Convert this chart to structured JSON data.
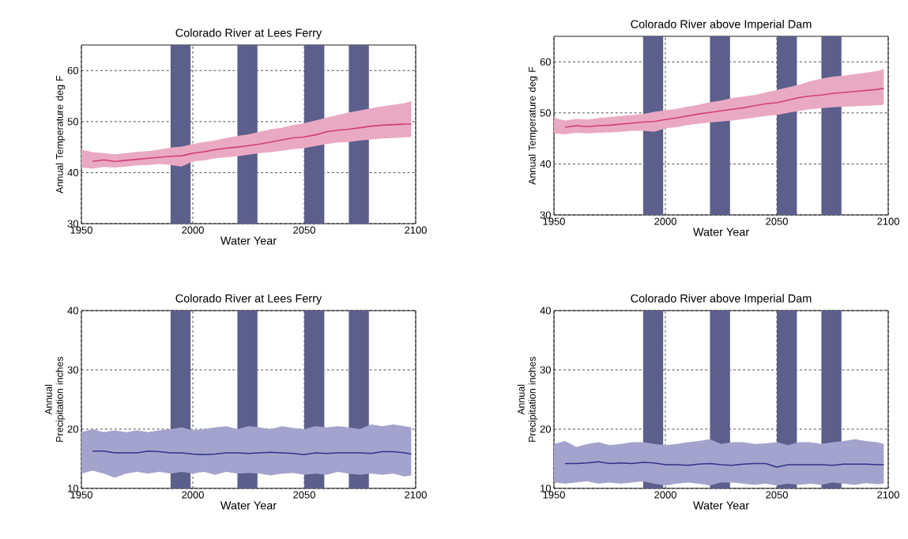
{
  "chart_data": [
    {
      "type": "line",
      "title": "Colorado River at Lees Ferry",
      "xlabel": "Water Year",
      "ylabel": "Annual Temperature deg F",
      "x": [
        1950,
        1955,
        1960,
        1965,
        1970,
        1975,
        1980,
        1985,
        1990,
        1995,
        2000,
        2005,
        2010,
        2015,
        2020,
        2025,
        2030,
        2035,
        2040,
        2045,
        2050,
        2055,
        2060,
        2065,
        2070,
        2075,
        2080,
        2085,
        2090,
        2095,
        2098
      ],
      "series": [
        {
          "color": "#d0407a",
          "values": [
            null,
            42.2,
            42.5,
            42.2,
            42.4,
            42.6,
            42.8,
            43.0,
            43.2,
            43.3,
            43.8,
            44.1,
            44.5,
            44.8,
            45.0,
            45.3,
            45.6,
            46.0,
            46.4,
            46.8,
            47.0,
            47.4,
            48.0,
            48.3,
            48.5,
            48.8,
            49.1,
            49.3,
            49.4,
            49.5,
            49.5
          ],
          "lower": [
            41,
            40.8,
            41.1,
            41,
            41.2,
            41.4,
            41.5,
            41.7,
            41.5,
            41.2,
            42.2,
            42.4,
            42.8,
            43,
            43.2,
            43.5,
            43.8,
            44,
            44.3,
            44.6,
            44.8,
            45.2,
            45.6,
            45.9,
            46,
            46.3,
            46.5,
            46.7,
            46.8,
            46.9,
            47
          ],
          "upper": [
            44.5,
            44,
            43.8,
            43.6,
            43.8,
            44.1,
            44.2,
            44.5,
            44.9,
            45.1,
            45.6,
            46,
            46.3,
            46.8,
            47.2,
            47.5,
            48,
            48.5,
            48.8,
            49.3,
            49.7,
            50.2,
            50.8,
            51.3,
            51.8,
            52.2,
            52.6,
            53,
            53.3,
            53.6,
            54
          ]
        }
      ],
      "bands": [
        {
          "axis": "x",
          "from": 1990,
          "to": 1999,
          "color": "#5c5f8c"
        },
        {
          "axis": "x",
          "from": 2020,
          "to": 2029,
          "color": "#5c5f8c"
        },
        {
          "axis": "x",
          "from": 2050,
          "to": 2059,
          "color": "#5c5f8c"
        },
        {
          "axis": "x",
          "from": 2070,
          "to": 2079,
          "color": "#5c5f8c"
        }
      ],
      "xlim": [
        1950,
        2100
      ],
      "xticks": [
        1950,
        2000,
        2050,
        2100
      ],
      "ylim": [
        30,
        65
      ],
      "yticks": [
        30,
        40,
        50,
        60
      ],
      "grid": true,
      "marker": "none",
      "line_style": "solid"
    },
    {
      "type": "line",
      "title": "Colorado River above Imperial Dam",
      "xlabel": "Water Year",
      "ylabel": "Annual Temperature deg F",
      "x": [
        1950,
        1955,
        1960,
        1965,
        1970,
        1975,
        1980,
        1985,
        1990,
        1995,
        2000,
        2005,
        2010,
        2015,
        2020,
        2025,
        2030,
        2035,
        2040,
        2045,
        2050,
        2055,
        2060,
        2065,
        2070,
        2075,
        2080,
        2085,
        2090,
        2095,
        2098
      ],
      "series": [
        {
          "color": "#d0407a",
          "values": [
            null,
            47.2,
            47.5,
            47.3,
            47.5,
            47.6,
            47.8,
            48.0,
            48.2,
            48.3,
            48.7,
            49.0,
            49.4,
            49.8,
            50.1,
            50.4,
            50.7,
            51.0,
            51.4,
            51.8,
            52.0,
            52.5,
            53.0,
            53.3,
            53.5,
            53.8,
            54.0,
            54.2,
            54.4,
            54.6,
            54.8
          ],
          "lower": [
            46,
            45.8,
            46.1,
            46,
            46.1,
            46.2,
            46.3,
            46.5,
            46.5,
            46.3,
            47,
            47.2,
            47.6,
            47.9,
            48.1,
            48.3,
            48.5,
            48.8,
            49.1,
            49.4,
            49.6,
            50,
            50.4,
            50.7,
            50.9,
            51.1,
            51.2,
            51.3,
            51.4,
            51.5,
            51.6
          ],
          "upper": [
            49,
            48.5,
            48.8,
            48.7,
            49,
            49.2,
            49.4,
            49.6,
            49.8,
            50.2,
            50.5,
            50.8,
            51.2,
            51.6,
            52.1,
            52.4,
            52.9,
            53.2,
            53.5,
            54,
            54.5,
            55,
            55.5,
            56.2,
            56.7,
            57.1,
            57.3,
            57.6,
            57.9,
            58.2,
            58.6
          ]
        }
      ],
      "bands": [
        {
          "axis": "x",
          "from": 1990,
          "to": 1999,
          "color": "#5c5f8c"
        },
        {
          "axis": "x",
          "from": 2020,
          "to": 2029,
          "color": "#5c5f8c"
        },
        {
          "axis": "x",
          "from": 2050,
          "to": 2059,
          "color": "#5c5f8c"
        },
        {
          "axis": "x",
          "from": 2070,
          "to": 2079,
          "color": "#5c5f8c"
        }
      ],
      "xlim": [
        1950,
        2100
      ],
      "xticks": [
        1950,
        2000,
        2050,
        2100
      ],
      "ylim": [
        30,
        65
      ],
      "yticks": [
        30,
        40,
        50,
        60
      ],
      "grid": true,
      "marker": "none",
      "line_style": "solid"
    },
    {
      "type": "line",
      "title": "Colorado River at Lees Ferry",
      "xlabel": "Water Year",
      "ylabel": "Annual Precipitation inches",
      "x": [
        1950,
        1955,
        1960,
        1965,
        1970,
        1975,
        1980,
        1985,
        1990,
        1995,
        2000,
        2005,
        2010,
        2015,
        2020,
        2025,
        2030,
        2035,
        2040,
        2045,
        2050,
        2055,
        2060,
        2065,
        2070,
        2075,
        2080,
        2085,
        2090,
        2095,
        2098
      ],
      "series": [
        {
          "color": "#33338f",
          "values": [
            null,
            16.3,
            16.3,
            16.0,
            16.0,
            16.0,
            16.3,
            16.2,
            16.0,
            16.0,
            15.8,
            15.7,
            15.8,
            16.0,
            16.0,
            15.9,
            16.0,
            16.1,
            16.0,
            15.9,
            15.7,
            16.0,
            15.9,
            16.0,
            16.0,
            16.0,
            15.9,
            16.2,
            16.2,
            16.0,
            15.8
          ],
          "lower": [
            12.5,
            13.0,
            12.5,
            11.8,
            12.5,
            12.8,
            12.5,
            12.8,
            12.5,
            12.8,
            12.5,
            12.8,
            12.3,
            12.8,
            12.5,
            12.6,
            12.5,
            12.2,
            12.5,
            12.6,
            12.3,
            12.5,
            12.3,
            12.8,
            12.5,
            12.3,
            12.5,
            12.3,
            12.5,
            12.0,
            12.2
          ],
          "upper": [
            19.5,
            20.0,
            19.5,
            19.8,
            19.5,
            19.8,
            19.5,
            19.8,
            20.0,
            20.3,
            19.8,
            20.0,
            20.3,
            20.5,
            20.0,
            20.5,
            20.3,
            20.0,
            20.5,
            20.2,
            20.0,
            20.5,
            20.3,
            20.5,
            20.3,
            20.0,
            20.8,
            20.5,
            20.8,
            20.5,
            20.3
          ]
        }
      ],
      "bands": [
        {
          "axis": "x",
          "from": 1990,
          "to": 1999,
          "color": "#5c5f8c"
        },
        {
          "axis": "x",
          "from": 2020,
          "to": 2029,
          "color": "#5c5f8c"
        },
        {
          "axis": "x",
          "from": 2050,
          "to": 2059,
          "color": "#5c5f8c"
        },
        {
          "axis": "x",
          "from": 2070,
          "to": 2079,
          "color": "#5c5f8c"
        }
      ],
      "xlim": [
        1950,
        2100
      ],
      "xticks": [
        1950,
        2000,
        2050,
        2100
      ],
      "ylim": [
        10,
        40
      ],
      "yticks": [
        10,
        20,
        30,
        40
      ],
      "grid": true,
      "marker": "none",
      "line_style": "solid"
    },
    {
      "type": "line",
      "title": "Colorado River above Imperial Dam",
      "xlabel": "Water Year",
      "ylabel": "Annual Precipitation inches",
      "x": [
        1950,
        1955,
        1960,
        1965,
        1970,
        1975,
        1980,
        1985,
        1990,
        1995,
        2000,
        2005,
        2010,
        2015,
        2020,
        2025,
        2030,
        2035,
        2040,
        2045,
        2050,
        2055,
        2060,
        2065,
        2070,
        2075,
        2080,
        2085,
        2090,
        2095,
        2098
      ],
      "series": [
        {
          "color": "#33338f",
          "values": [
            null,
            14.2,
            14.2,
            14.3,
            14.5,
            14.2,
            14.3,
            14.2,
            14.4,
            14.3,
            14.0,
            14.0,
            13.9,
            14.1,
            14.2,
            14.0,
            13.9,
            14.1,
            14.2,
            14.2,
            13.6,
            14.0,
            14.0,
            14.0,
            14.0,
            13.9,
            14.1,
            14.1,
            14.1,
            14.0,
            14.0
          ],
          "lower": [
            11.0,
            10.8,
            11.0,
            11.2,
            10.8,
            11.0,
            10.8,
            11.0,
            11.2,
            10.8,
            10.5,
            10.8,
            11.0,
            10.8,
            10.5,
            11.0,
            11.0,
            10.8,
            10.6,
            10.8,
            10.5,
            10.8,
            10.6,
            10.8,
            10.6,
            11.0,
            10.8,
            10.6,
            10.9,
            10.7,
            10.8
          ],
          "upper": [
            17.5,
            18.0,
            17.0,
            17.5,
            17.8,
            17.3,
            17.5,
            17.8,
            17.8,
            17.5,
            17.3,
            17.5,
            17.8,
            18.0,
            18.3,
            17.5,
            17.8,
            17.8,
            17.5,
            17.6,
            17.8,
            17.3,
            17.8,
            17.8,
            17.5,
            17.8,
            18.0,
            18.3,
            18.0,
            17.8,
            17.5
          ]
        }
      ],
      "bands": [
        {
          "axis": "x",
          "from": 1990,
          "to": 1999,
          "color": "#5c5f8c"
        },
        {
          "axis": "x",
          "from": 2020,
          "to": 2029,
          "color": "#5c5f8c"
        },
        {
          "axis": "x",
          "from": 2050,
          "to": 2059,
          "color": "#5c5f8c"
        },
        {
          "axis": "x",
          "from": 2070,
          "to": 2079,
          "color": "#5c5f8c"
        }
      ],
      "xlim": [
        1950,
        2100
      ],
      "xticks": [
        1950,
        2000,
        2050,
        2100
      ],
      "ylim": [
        10,
        40
      ],
      "yticks": [
        10,
        20,
        30,
        40
      ],
      "grid": true,
      "marker": "none",
      "line_style": "solid"
    }
  ]
}
